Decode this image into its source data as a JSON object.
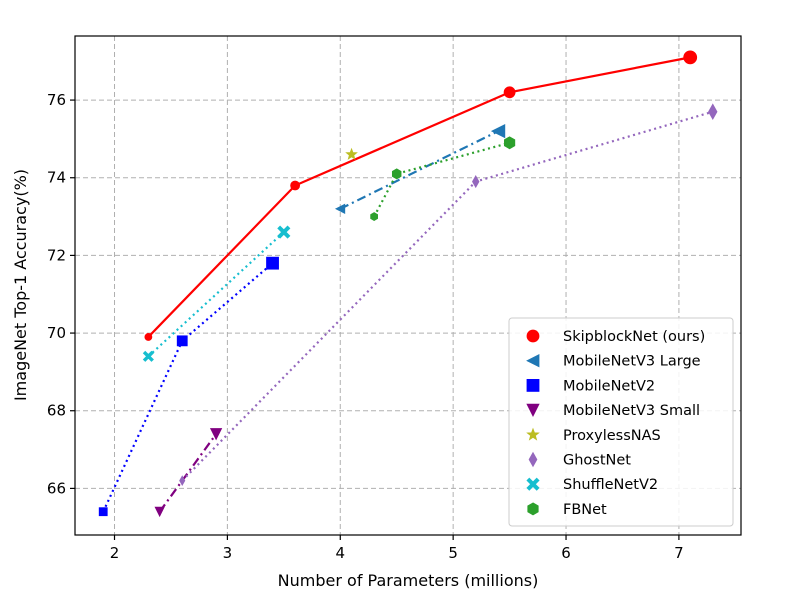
{
  "chart_data": {
    "type": "line",
    "xlabel": "Number of Parameters (millions)",
    "ylabel": "ImageNet Top-1 Accuracy(%)",
    "xlim": [
      1.65,
      7.55
    ],
    "ylim": [
      64.8,
      77.65
    ],
    "xticks": [
      2,
      3,
      4,
      5,
      6,
      7
    ],
    "yticks": [
      66,
      68,
      70,
      72,
      74,
      76
    ],
    "grid": true,
    "legend_position": "lower-right",
    "series": [
      {
        "name": "SkipblockNet (ours)",
        "color": "#ff0000",
        "marker": "circle",
        "linestyle": "solid",
        "x": [
          2.3,
          3.6,
          5.5,
          7.1
        ],
        "y": [
          69.9,
          73.8,
          76.2,
          77.1
        ],
        "sizes": [
          7,
          9,
          11,
          13
        ]
      },
      {
        "name": "MobileNetV3 Large",
        "color": "#1f77b4",
        "marker": "triangle-left",
        "linestyle": "dashdot",
        "x": [
          4.0,
          5.4
        ],
        "y": [
          73.2,
          75.2
        ],
        "sizes": [
          9,
          13
        ]
      },
      {
        "name": "MobileNetV2",
        "color": "#0000ff",
        "marker": "square",
        "linestyle": "dotted",
        "x": [
          1.9,
          2.6,
          3.4
        ],
        "y": [
          65.4,
          69.8,
          71.8
        ],
        "sizes": [
          8,
          10,
          12
        ]
      },
      {
        "name": "MobileNetV3 Small",
        "color": "#800080",
        "marker": "triangle-down",
        "linestyle": "dashdot",
        "x": [
          2.4,
          2.9
        ],
        "y": [
          65.4,
          67.4
        ],
        "sizes": [
          9,
          11
        ]
      },
      {
        "name": "ProxylessNAS",
        "color": "#bcbd22",
        "marker": "star",
        "linestyle": "none",
        "x": [
          4.1
        ],
        "y": [
          74.6
        ],
        "sizes": [
          11
        ]
      },
      {
        "name": "GhostNet",
        "color": "#9467bd",
        "marker": "diamond",
        "linestyle": "dotted",
        "x": [
          2.6,
          5.2,
          7.3
        ],
        "y": [
          66.2,
          73.9,
          75.7
        ],
        "sizes": [
          8,
          10,
          13
        ]
      },
      {
        "name": "ShuffleNetV2",
        "color": "#17becf",
        "marker": "x",
        "linestyle": "dotted",
        "x": [
          2.3,
          3.5
        ],
        "y": [
          69.4,
          72.6
        ],
        "sizes": [
          10,
          12
        ]
      },
      {
        "name": "FBNet",
        "color": "#2ca02c",
        "marker": "hexagon",
        "linestyle": "dotted",
        "x": [
          4.3,
          4.5,
          5.5
        ],
        "y": [
          73.0,
          74.1,
          74.9
        ],
        "sizes": [
          8,
          10,
          12
        ]
      }
    ]
  }
}
